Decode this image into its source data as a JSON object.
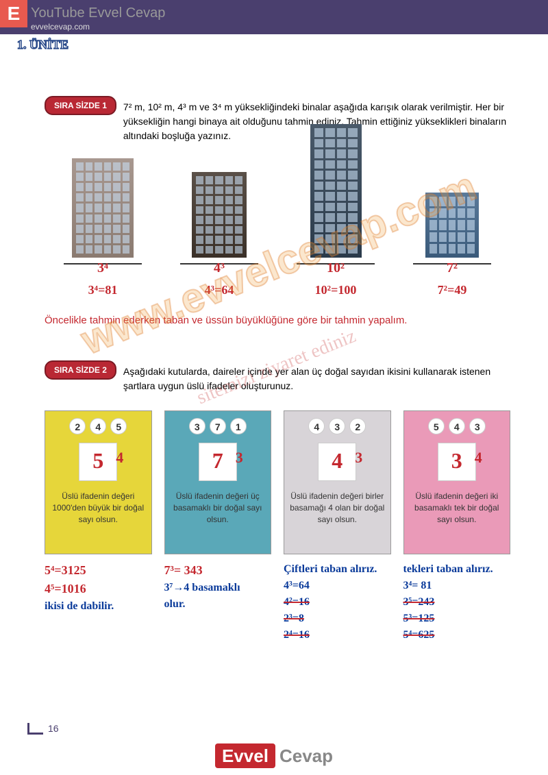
{
  "header": {
    "logo_letter": "E",
    "yt": "YouTube Evvel Cevap",
    "url": "evvelcevap.com",
    "unite": "1. ÜNİTE"
  },
  "q1": {
    "badge": "SIRA SİZDE 1",
    "text": "7² m, 10² m, 4³ m ve 3⁴ m yüksekliğindeki binalar aşağıda karışık olarak verilmiştir. Her bir yüksekliğin hangi binaya ait olduğunu tahmin ediniz. Tahmin ettiğiniz yükseklikleri binaların altındaki boşluğa yazınız.",
    "buildings": [
      {
        "label": "3⁴",
        "calc": "3⁴=81"
      },
      {
        "label": "4³",
        "calc": "4³=64"
      },
      {
        "label": "10²",
        "calc": "10²=100"
      },
      {
        "label": "7²",
        "calc": "7²=49"
      }
    ],
    "hint": "Öncelikle tahmin ederken taban ve üssün büyüklüğüne göre bir tahmin yapalım."
  },
  "q2": {
    "badge": "SIRA SİZDE 2",
    "text": "Aşağıdaki kutularda, daireler içinde yer alan üç doğal sayıdan ikisini kullanarak istenen şartlara uygun üslü ifadeler oluşturunuz.",
    "boxes": [
      {
        "bg": "#e6d63a",
        "nums": [
          "2",
          "4",
          "5"
        ],
        "ans_base": "5",
        "ans_exp": "4",
        "desc": "Üslü ifadenin değeri 1000'den büyük bir doğal sayı olsun."
      },
      {
        "bg": "#5aa8b8",
        "nums": [
          "3",
          "7",
          "1"
        ],
        "ans_base": "7",
        "ans_exp": "3",
        "desc": "Üslü ifadenin değeri üç basamaklı bir doğal sayı olsun."
      },
      {
        "bg": "#d8d4d8",
        "nums": [
          "4",
          "3",
          "2"
        ],
        "ans_base": "4",
        "ans_exp": "3",
        "desc": "Üslü ifadenin değeri birler basamağı 4 olan bir doğal sayı olsun."
      },
      {
        "bg": "#ea9ab8",
        "nums": [
          "5",
          "4",
          "3"
        ],
        "ans_base": "3",
        "ans_exp": "4",
        "desc": "Üslü ifadenin değeri iki basamaklı tek bir doğal sayı olsun."
      }
    ],
    "working": [
      {
        "lines": [
          "5⁴=3125",
          "4⁵=1016",
          "ikisi de dabilir."
        ]
      },
      {
        "lines": [
          "7³= 343",
          "3⁷→4 basamaklı",
          "olur."
        ]
      },
      {
        "note": "Çiftleri taban alırız.",
        "lines": [
          "4³=64",
          "4²=16",
          "2³=8",
          "2⁴=16"
        ]
      },
      {
        "note": "tekleri taban alırız.",
        "lines": [
          "3⁴= 81",
          "3⁵=243",
          "5³=125",
          "5⁴=625"
        ]
      }
    ]
  },
  "page_num": "16",
  "footer": {
    "evvel": "Evvel",
    "cevap": "Cevap"
  },
  "watermark": "www.evvelcevap.com",
  "watermark2": "sitemizi ziyaret ediniz"
}
